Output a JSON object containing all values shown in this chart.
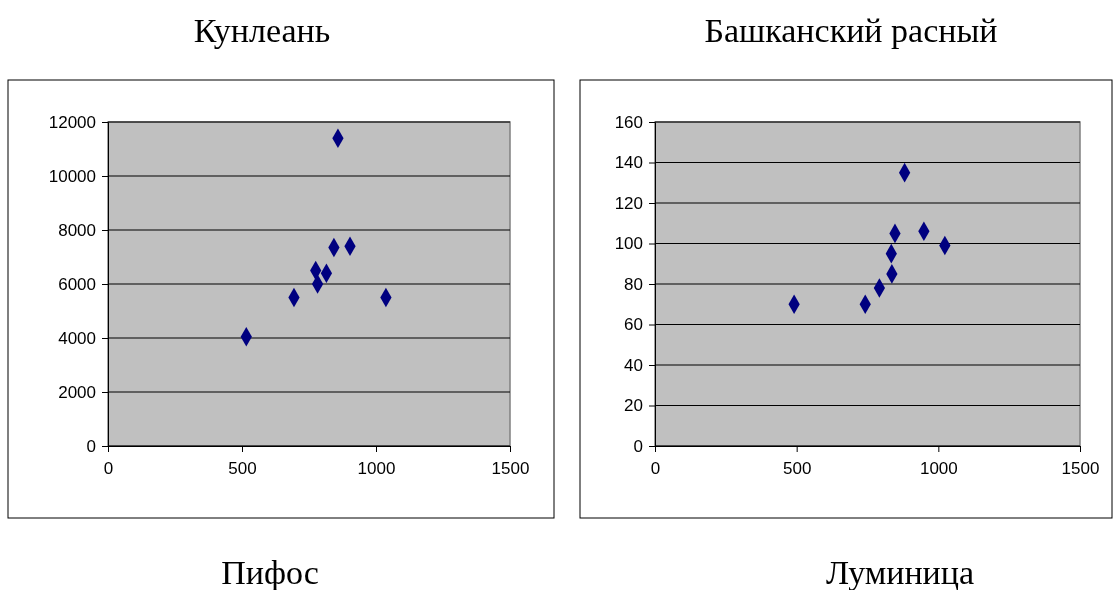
{
  "chart_data": [
    {
      "type": "scatter",
      "title": "Кунлеань",
      "annotations": [
        "Пифос"
      ],
      "marker": "diamond",
      "grid": "y",
      "xlim": [
        0,
        1500
      ],
      "xticks": [
        0,
        500,
        1000,
        1500
      ],
      "ylim": [
        0,
        12000
      ],
      "yticks": [
        0,
        2000,
        4000,
        6000,
        8000,
        10000,
        12000
      ],
      "series": [
        {
          "color": "#000080",
          "x": [
            858,
            843,
            903,
            775,
            815,
            782,
            694,
            1037,
            516
          ],
          "values": [
            11400,
            7350,
            7400,
            6500,
            6400,
            6000,
            5500,
            5500,
            4050
          ]
        }
      ]
    },
    {
      "type": "scatter",
      "title": "Башканский расный",
      "annotations": [
        "Луминица"
      ],
      "marker": "diamond",
      "grid": "y",
      "xlim": [
        0,
        1500
      ],
      "xticks": [
        0,
        500,
        1000,
        1500
      ],
      "ylim": [
        0,
        160
      ],
      "yticks": [
        0,
        20,
        40,
        60,
        80,
        100,
        120,
        140,
        160
      ],
      "series": [
        {
          "color": "#000080",
          "x": [
            881,
            847,
            949,
            1023,
            834,
            836,
            792,
            742,
            491
          ],
          "values": [
            135,
            105,
            106,
            99,
            95,
            85,
            78,
            70,
            70
          ]
        }
      ]
    }
  ]
}
